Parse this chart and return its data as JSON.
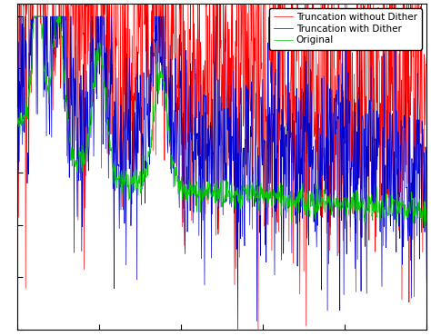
{
  "legend_labels": [
    "Original",
    "Truncation with Dither",
    "Truncation without Dither"
  ],
  "legend_colors": [
    "#00cc00",
    "#0000cc",
    "#ff0000"
  ],
  "background_color": "#ffffff",
  "n_points": 1024,
  "seed": 7,
  "linewidth": 0.5,
  "figsize": [
    4.74,
    3.7
  ],
  "dpi": 100,
  "ylim": [
    -120,
    5
  ],
  "xlim": [
    0,
    1
  ],
  "legend_fontsize": 7.5
}
